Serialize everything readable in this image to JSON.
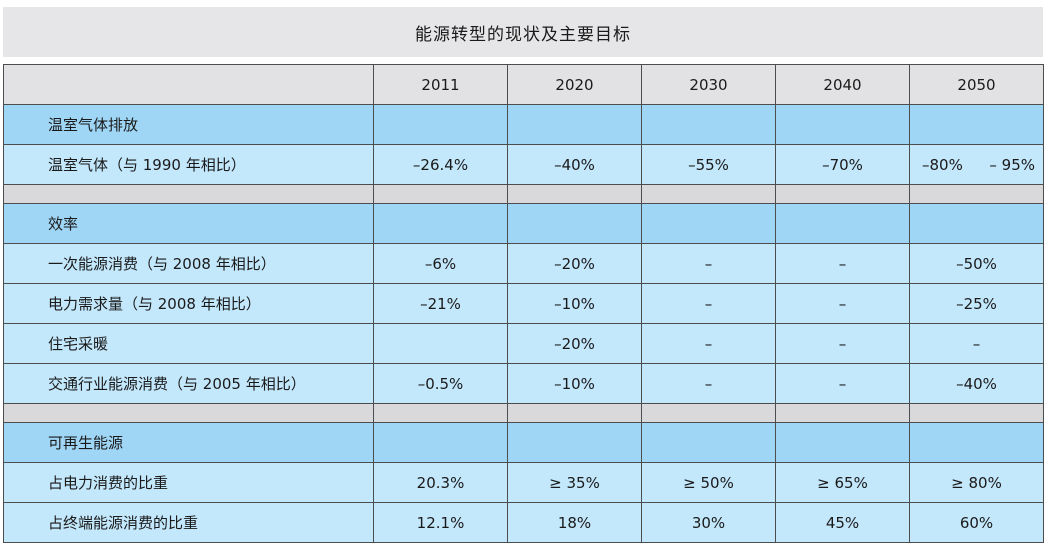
{
  "title": "能源转型的现状及主要目标",
  "years": [
    "2011",
    "2020",
    "2030",
    "2040",
    "2050"
  ],
  "sections": [
    {
      "heading": "温室气体排放",
      "rows": [
        {
          "label": "温室气体（与 1990 年相比）",
          "values": [
            "–26.4%",
            "–40%",
            "–55%",
            "–70%",
            [
              "–80%",
              "– 95%"
            ]
          ]
        }
      ]
    },
    {
      "heading": "效率",
      "rows": [
        {
          "label": "一次能源消费（与 2008 年相比）",
          "values": [
            "–6%",
            "–20%",
            "–",
            "–",
            "–50%"
          ]
        },
        {
          "label": "电力需求量（与 2008 年相比）",
          "values": [
            "–21%",
            "–10%",
            "–",
            "–",
            "–25%"
          ]
        },
        {
          "label": "住宅采暖",
          "values": [
            "",
            "–20%",
            "–",
            "–",
            "–"
          ]
        },
        {
          "label": "交通行业能源消费（与 2005 年相比）",
          "values": [
            "–0.5%",
            "–10%",
            "–",
            "–",
            "–40%"
          ]
        }
      ]
    },
    {
      "heading": "可再生能源",
      "rows": [
        {
          "label": "占电力消费的比重",
          "values": [
            "20.3%",
            "≥ 35%",
            "≥ 50%",
            "≥ 65%",
            "≥ 80%"
          ]
        },
        {
          "label": "占终端能源消费的比重",
          "values": [
            "12.1%",
            "18%",
            "30%",
            "45%",
            "60%"
          ]
        }
      ]
    }
  ]
}
